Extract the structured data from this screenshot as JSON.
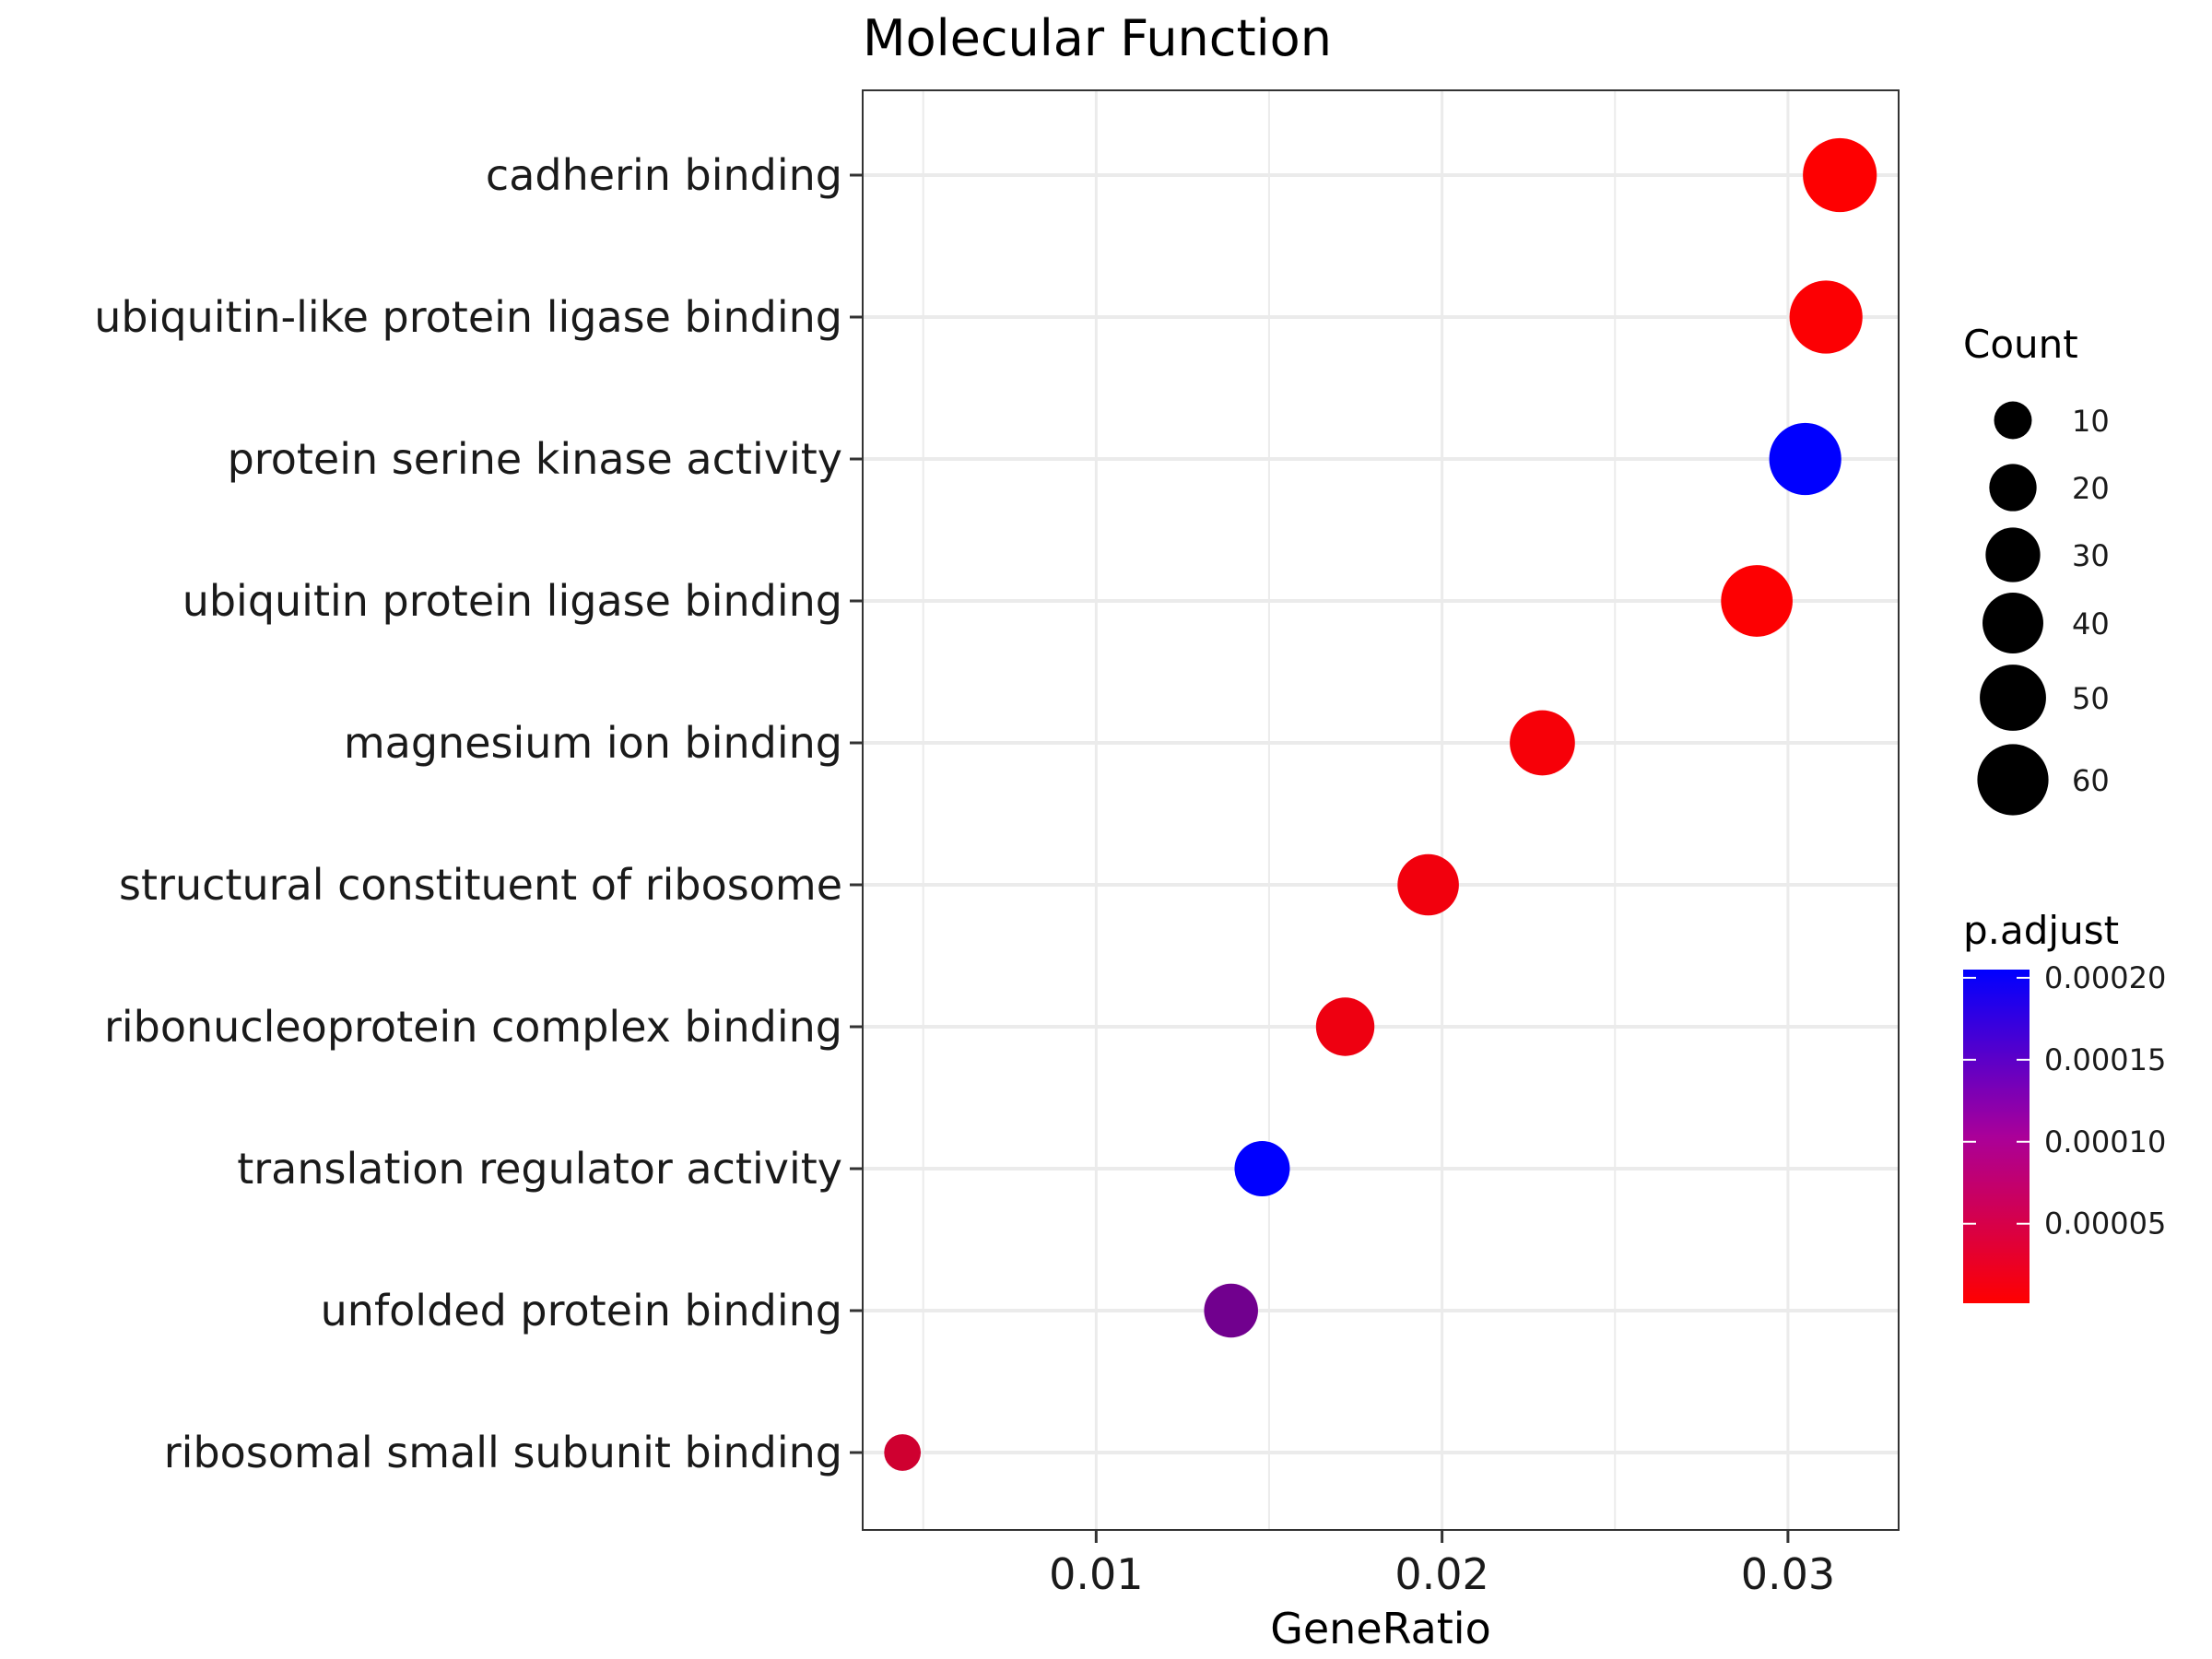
{
  "chart_data": {
    "type": "scatter",
    "title": "Molecular Function",
    "xlabel": "GeneRatio",
    "ylabel": "",
    "xlim": [
      0.00325,
      0.0332
    ],
    "xticks": [
      0.01,
      0.02,
      0.03
    ],
    "xtick_labels": [
      "0.01",
      "0.02",
      "0.03"
    ],
    "grid": true,
    "categories": [
      "cadherin binding",
      "ubiquitin-like protein ligase binding",
      "protein serine kinase activity",
      "ubiquitin protein ligase binding",
      "magnesium ion binding",
      "structural constituent of ribosome",
      "ribonucleoprotein complex binding",
      "translation regulator activity",
      "unfolded protein binding",
      "ribosomal small subunit binding"
    ],
    "series": [
      {
        "x": [
          0.0315,
          0.0311,
          0.0305,
          0.0291,
          0.0229,
          0.0196,
          0.0172,
          0.0148,
          0.0139,
          0.0044
        ],
        "count": [
          66,
          64,
          62,
          61,
          48,
          41,
          36,
          31,
          29,
          9
        ],
        "p_adjust": [
          2e-06,
          4e-06,
          0.000205,
          3e-06,
          8e-06,
          1.2e-05,
          1.5e-05,
          0.000205,
          0.000115,
          4e-05
        ]
      }
    ],
    "legends": {
      "size": {
        "title": "Count",
        "values": [
          10,
          20,
          30,
          40,
          50,
          60
        ],
        "labels": [
          "10",
          "20",
          "30",
          "40",
          "50",
          "60"
        ]
      },
      "color": {
        "title": "p.adjust",
        "min": 1.5e-06,
        "max": 0.000205,
        "ticks": [
          5e-05,
          0.0001,
          0.00015,
          0.0002
        ],
        "labels": [
          "0.00005",
          "0.00010",
          "0.00015",
          "0.00020"
        ],
        "low_color": "#ff0000",
        "high_color": "#0000ff"
      },
      "placement": "right"
    },
    "colors": {
      "grid": "#ebebeb",
      "panel_border": "#333333"
    }
  }
}
